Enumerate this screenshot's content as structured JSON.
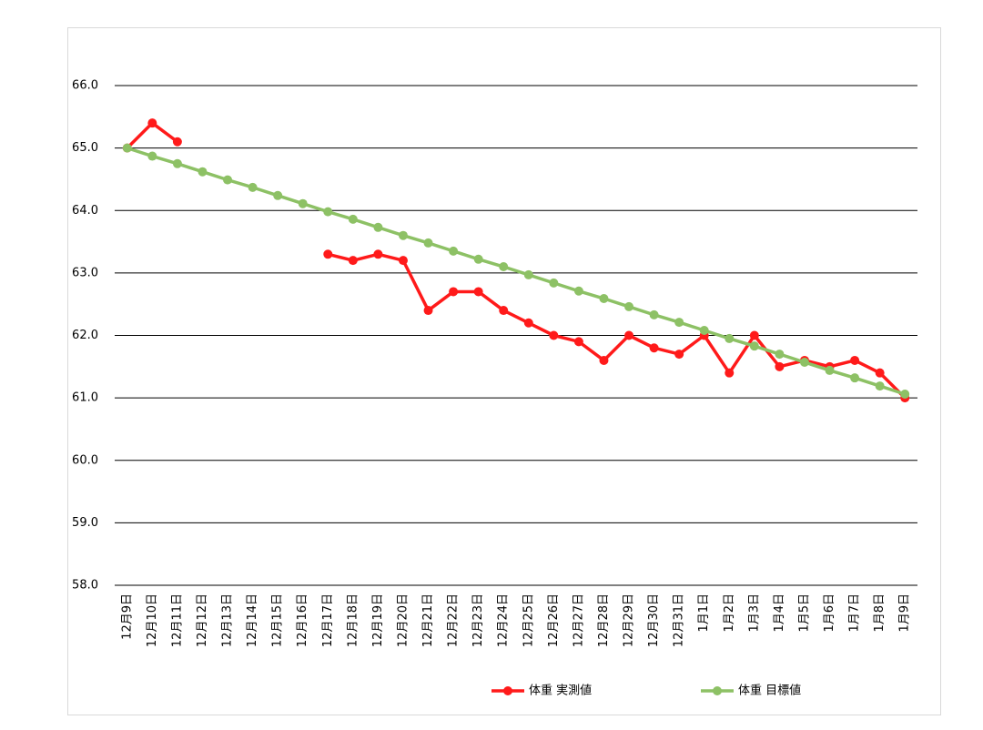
{
  "chart_data": {
    "type": "line",
    "categories": [
      "12月9日",
      "12月10日",
      "12月11日",
      "12月12日",
      "12月13日",
      "12月14日",
      "12月15日",
      "12月16日",
      "12月17日",
      "12月18日",
      "12月19日",
      "12月20日",
      "12月21日",
      "12月22日",
      "12月23日",
      "12月24日",
      "12月25日",
      "12月26日",
      "12月27日",
      "12月28日",
      "12月29日",
      "12月30日",
      "12月31日",
      "1月1日",
      "1月2日",
      "1月3日",
      "1月4日",
      "1月5日",
      "1月6日",
      "1月7日",
      "1月8日",
      "1月9日"
    ],
    "series": [
      {
        "name": "体重 実測値",
        "color": "#ff1a1a",
        "values": [
          65.0,
          65.4,
          65.1,
          null,
          null,
          null,
          null,
          null,
          63.3,
          63.2,
          63.3,
          63.2,
          62.4,
          62.7,
          62.7,
          62.4,
          62.2,
          62.0,
          61.9,
          61.6,
          62.0,
          61.8,
          61.7,
          62.0,
          61.4,
          62.0,
          61.5,
          61.6,
          61.5,
          61.6,
          61.4,
          61.0
        ]
      },
      {
        "name": "体重 目標値",
        "color": "#8dc165",
        "values": [
          65.0,
          64.87,
          64.75,
          64.62,
          64.49,
          64.37,
          64.24,
          64.11,
          63.98,
          63.86,
          63.73,
          63.6,
          63.48,
          63.35,
          63.22,
          63.1,
          62.97,
          62.84,
          62.71,
          62.59,
          62.46,
          62.33,
          62.21,
          62.08,
          61.95,
          61.83,
          61.7,
          61.57,
          61.44,
          61.32,
          61.19,
          61.06
        ]
      }
    ],
    "ylim": [
      58,
      66
    ],
    "yticks": [
      {
        "value": 58,
        "label": "58.0"
      },
      {
        "value": 59,
        "label": "59.0"
      },
      {
        "value": 60,
        "label": "60.0"
      },
      {
        "value": 61,
        "label": "61.0"
      },
      {
        "value": 62,
        "label": "62.0"
      },
      {
        "value": 63,
        "label": "63.0"
      },
      {
        "value": 64,
        "label": "64.0"
      },
      {
        "value": 65,
        "label": "65.0"
      },
      {
        "value": 66,
        "label": "66.0"
      }
    ],
    "grid": true
  }
}
